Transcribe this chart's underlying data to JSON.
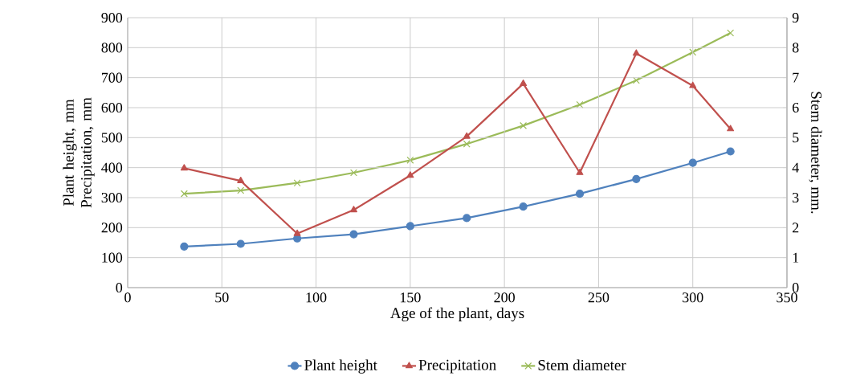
{
  "chart_data": {
    "type": "line",
    "xlabel": "Age of the plant, days",
    "ylabel": "Plant height, mm Precipitation, mm",
    "y2label": "Stem diameter, mm.",
    "x": [
      30,
      60,
      90,
      120,
      150,
      180,
      210,
      240,
      270,
      300,
      320
    ],
    "series": [
      {
        "name": "Plant height",
        "color": "#4f81bd",
        "marker": "circle",
        "values": [
          137,
          146,
          164,
          178,
          205,
          232,
          270,
          313,
          362,
          416,
          454
        ]
      },
      {
        "name": "Precipitation",
        "color": "#c0504d",
        "marker": "triangle",
        "values": [
          398,
          356,
          180,
          259,
          374,
          504,
          680,
          383,
          781,
          673,
          529
        ]
      },
      {
        "name": "Stem diameter",
        "color": "#9bbb59",
        "marker": "cross",
        "axis": "y2",
        "values": [
          3.13,
          3.24,
          3.49,
          3.83,
          4.25,
          4.79,
          5.4,
          6.1,
          6.91,
          7.85,
          8.49
        ]
      }
    ],
    "xlim": [
      0,
      350
    ],
    "xticks": [
      0,
      50,
      100,
      150,
      200,
      250,
      300,
      350
    ],
    "ylim": [
      0,
      900
    ],
    "yticks": [
      0,
      100,
      200,
      300,
      400,
      500,
      600,
      700,
      800,
      900
    ],
    "y2lim": [
      0,
      9
    ],
    "y2ticks": [
      0,
      1,
      2,
      3,
      4,
      5,
      6,
      7,
      8,
      9
    ],
    "grid": true,
    "legend": "bottom",
    "line_style": "solid"
  }
}
